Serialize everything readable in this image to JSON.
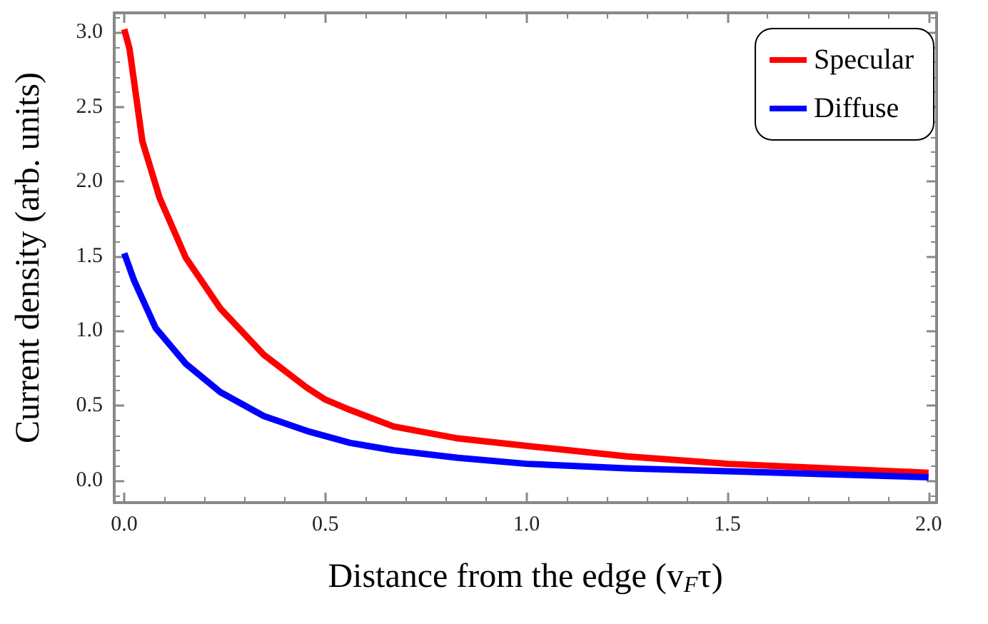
{
  "chart_data": {
    "type": "line",
    "xlabel": "Distance from the edge (v$_{F}$τ)",
    "ylabel": "Current density (arb. units)",
    "xlim": [
      -0.025,
      2.02
    ],
    "xticks": [
      {
        "value": 0,
        "label": "0.0"
      },
      0.5,
      {
        "value": 1,
        "label": "1.0"
      },
      1.5,
      {
        "value": 2,
        "label": "2.0"
      }
    ],
    "ylim": [
      -0.15,
      3.13
    ],
    "yticks": [
      {
        "value": 0,
        "label": "0.0"
      },
      0.5,
      {
        "value": 1,
        "label": "1.0"
      },
      1.5,
      {
        "value": 2,
        "label": "2.0"
      },
      2.5,
      {
        "value": 3,
        "label": "3.0"
      }
    ],
    "grid": false,
    "legend": "top right",
    "marker": "none",
    "line_style": "solid",
    "series": [
      {
        "name": "Specular",
        "color": "#ff0000",
        "x": [
          0,
          0.013,
          0.045,
          0.088,
          0.153,
          0.239,
          0.347,
          0.454,
          0.5,
          0.562,
          0.67,
          0.83,
          1.0,
          1.25,
          1.5,
          1.75,
          2.0
        ],
        "values": [
          3.02,
          2.89,
          2.27,
          1.89,
          1.49,
          1.15,
          0.84,
          0.62,
          0.54,
          0.47,
          0.36,
          0.28,
          0.23,
          0.16,
          0.11,
          0.08,
          0.05
        ]
      },
      {
        "name": "Diffuse",
        "color": "#0000ff",
        "x": [
          0,
          0.024,
          0.078,
          0.153,
          0.239,
          0.347,
          0.454,
          0.562,
          0.67,
          0.83,
          1.0,
          1.25,
          1.5,
          1.75,
          2.0
        ],
        "values": [
          1.52,
          1.34,
          1.02,
          0.78,
          0.59,
          0.43,
          0.33,
          0.25,
          0.2,
          0.15,
          0.11,
          0.08,
          0.06,
          0.04,
          0.02
        ]
      }
    ]
  }
}
